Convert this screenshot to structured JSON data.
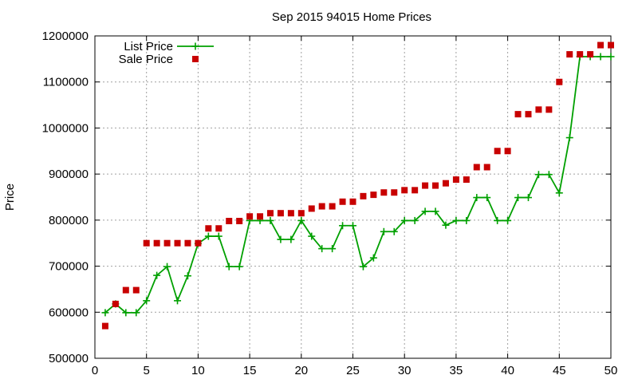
{
  "chart_data": {
    "type": "line",
    "title": "Sep 2015 94015 Home Prices",
    "xlabel": "",
    "ylabel": "Price",
    "xlim": [
      0,
      50
    ],
    "ylim": [
      500000,
      1200000
    ],
    "x_ticks": [
      "0",
      "5",
      "10",
      "15",
      "20",
      "25",
      "30",
      "35",
      "40",
      "45",
      "50"
    ],
    "y_ticks": [
      "500000",
      "600000",
      "700000",
      "800000",
      "900000",
      "1000000",
      "1100000",
      "1200000"
    ],
    "grid": true,
    "legend_position": "top-left",
    "series": [
      {
        "name": "List Price",
        "style": "line-cross",
        "color": "#00a000",
        "x": [
          1,
          2,
          3,
          4,
          5,
          6,
          7,
          8,
          9,
          10,
          11,
          12,
          13,
          14,
          15,
          16,
          17,
          18,
          19,
          20,
          21,
          22,
          23,
          24,
          25,
          26,
          27,
          28,
          29,
          30,
          31,
          32,
          33,
          34,
          35,
          36,
          37,
          38,
          39,
          40,
          41,
          42,
          43,
          44,
          45,
          46,
          47,
          48,
          49,
          50
        ],
        "values": [
          599000,
          618000,
          599000,
          599000,
          625000,
          680000,
          699000,
          625000,
          679000,
          749000,
          765000,
          765000,
          699000,
          699000,
          799000,
          799000,
          799000,
          758000,
          758000,
          799000,
          765000,
          738000,
          738000,
          788000,
          788000,
          699000,
          718000,
          775000,
          775000,
          799000,
          799000,
          819000,
          819000,
          789000,
          799000,
          799000,
          849000,
          849000,
          799000,
          799000,
          849000,
          849000,
          899000,
          899000,
          859000,
          979000,
          1155000,
          1155000,
          1155000,
          1155000
        ]
      },
      {
        "name": "Sale Price",
        "style": "square-points",
        "color": "#c80000",
        "x": [
          1,
          2,
          3,
          4,
          5,
          6,
          7,
          8,
          9,
          10,
          11,
          12,
          13,
          14,
          15,
          16,
          17,
          18,
          19,
          20,
          21,
          22,
          23,
          24,
          25,
          26,
          27,
          28,
          29,
          30,
          31,
          32,
          33,
          34,
          35,
          36,
          37,
          38,
          39,
          40,
          41,
          42,
          43,
          44,
          45,
          46,
          47,
          48,
          49,
          50
        ],
        "values": [
          570000,
          618000,
          648000,
          648000,
          750000,
          750000,
          750000,
          750000,
          750000,
          750000,
          782000,
          782000,
          798000,
          798000,
          808000,
          808000,
          815000,
          815000,
          815000,
          815000,
          825000,
          830000,
          830000,
          840000,
          840000,
          852000,
          855000,
          860000,
          860000,
          865000,
          865000,
          875000,
          875000,
          880000,
          888000,
          888000,
          915000,
          915000,
          950000,
          950000,
          1030000,
          1030000,
          1040000,
          1040000,
          1100000,
          1160000,
          1160000,
          1160000,
          1180000,
          1180000
        ]
      }
    ]
  }
}
